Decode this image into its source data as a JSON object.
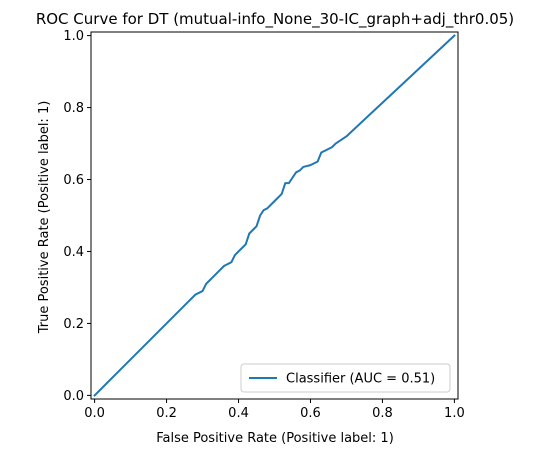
{
  "chart_data": {
    "type": "line",
    "title": "ROC Curve for DT (mutual-info_None_30-IC_graph+adj_thr0.05)",
    "xlabel": "False Positive Rate (Positive label: 1)",
    "ylabel": "True Positive Rate (Positive label: 1)",
    "xlim": [
      -0.01,
      1.01
    ],
    "ylim": [
      -0.01,
      1.01
    ],
    "xticks": [
      "0.0",
      "0.2",
      "0.4",
      "0.6",
      "0.8",
      "1.0"
    ],
    "yticks": [
      "0.0",
      "0.2",
      "0.4",
      "0.6",
      "0.8",
      "1.0"
    ],
    "grid": false,
    "legend": {
      "placement": "lower-right",
      "entries": [
        "Classifier (AUC = 0.51)"
      ]
    },
    "series": [
      {
        "name": "Classifier (AUC = 0.51)",
        "color": "#1f77b4",
        "x": [
          0.0,
          0.25,
          0.26,
          0.27,
          0.28,
          0.3,
          0.31,
          0.32,
          0.33,
          0.34,
          0.36,
          0.38,
          0.39,
          0.4,
          0.41,
          0.42,
          0.43,
          0.44,
          0.45,
          0.46,
          0.47,
          0.48,
          0.5,
          0.52,
          0.53,
          0.54,
          0.56,
          0.57,
          0.58,
          0.6,
          0.6,
          0.62,
          0.63,
          0.64,
          0.66,
          0.67,
          0.7,
          1.0
        ],
        "y": [
          0.0,
          0.25,
          0.26,
          0.27,
          0.28,
          0.29,
          0.31,
          0.32,
          0.33,
          0.34,
          0.36,
          0.37,
          0.39,
          0.4,
          0.41,
          0.42,
          0.45,
          0.46,
          0.47,
          0.5,
          0.515,
          0.52,
          0.54,
          0.56,
          0.59,
          0.59,
          0.62,
          0.625,
          0.635,
          0.64,
          0.64,
          0.65,
          0.675,
          0.68,
          0.69,
          0.7,
          0.72,
          1.0
        ]
      }
    ]
  }
}
